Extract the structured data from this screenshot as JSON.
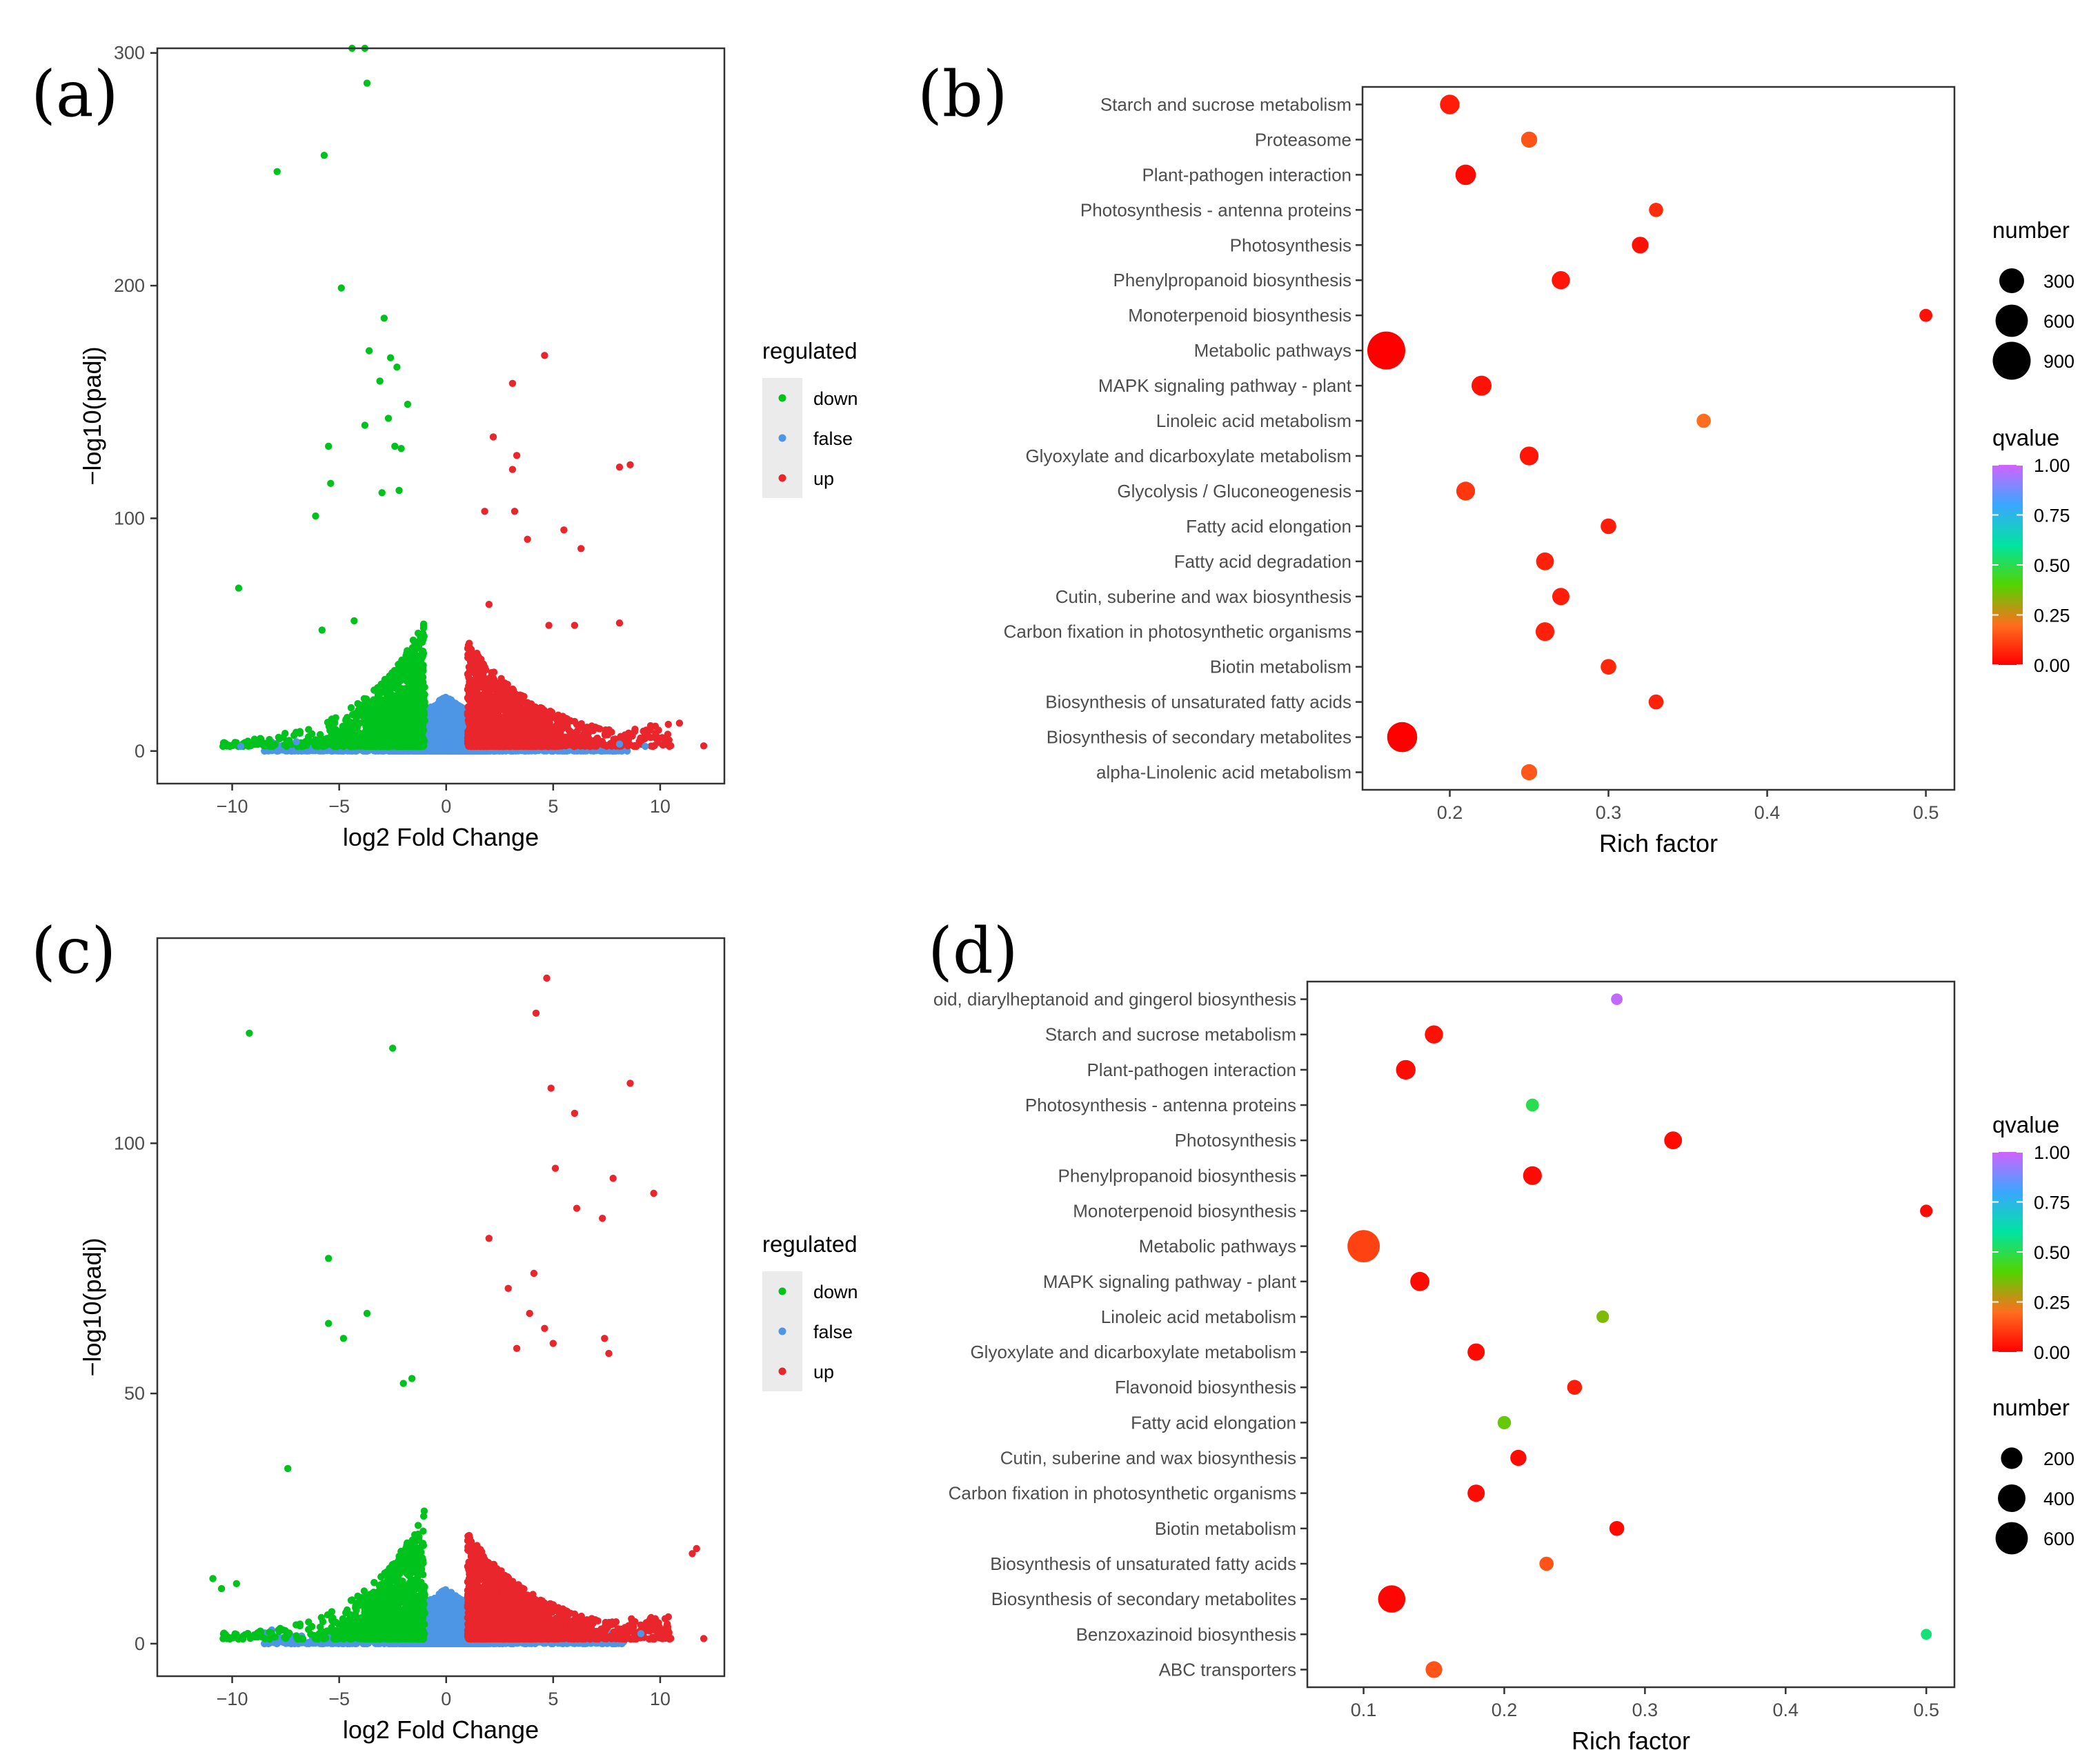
{
  "figure": {
    "panels": [
      {
        "letter": "(a)"
      },
      {
        "letter": "(b)"
      },
      {
        "letter": "(c)"
      },
      {
        "letter": "(d)"
      }
    ]
  },
  "colors": {
    "down": "#00c21d",
    "false": "#4d96e6",
    "up": "#e8262c",
    "legend_key_bg": "#ebebeb",
    "qvalue_gradient": [
      "#ff0000",
      "#ff6e1e",
      "#52d400",
      "#00e4a0",
      "#39a7ff",
      "#d063ff"
    ]
  },
  "chart_data": [
    {
      "id": "a",
      "type": "scatter",
      "title": "",
      "xlabel": "log2 Fold Change",
      "ylabel": "−log10(padj)",
      "xlim": [
        -13.5,
        13
      ],
      "ylim": [
        -14,
        302
      ],
      "xticks": [
        -10,
        -5,
        0,
        5,
        10
      ],
      "xtick_labels": [
        "−10",
        "−5",
        "0",
        "5",
        "10"
      ],
      "yticks": [
        0,
        100,
        200,
        300
      ],
      "ytick_labels": [
        "0",
        "100",
        "200",
        "300"
      ],
      "legend": {
        "title": "regulated",
        "entries": [
          "down",
          "false",
          "up"
        ],
        "position": "right"
      },
      "notable_points": {
        "down": [
          [
            -4.4,
            302
          ],
          [
            -3.8,
            302
          ],
          [
            -3.7,
            287
          ],
          [
            -7.9,
            249
          ],
          [
            -5.7,
            256
          ],
          [
            -4.9,
            199
          ],
          [
            -2.9,
            186
          ],
          [
            -3.6,
            172
          ],
          [
            -2.6,
            169
          ],
          [
            -2.3,
            165
          ],
          [
            -3.1,
            159
          ],
          [
            -1.8,
            149
          ],
          [
            -3.8,
            140
          ],
          [
            -2.7,
            143
          ],
          [
            -5.5,
            131
          ],
          [
            -2.4,
            131
          ],
          [
            -2.1,
            130
          ],
          [
            -5.4,
            115
          ],
          [
            -2.2,
            112
          ],
          [
            -3.0,
            111
          ],
          [
            -6.1,
            101
          ],
          [
            -9.7,
            70
          ],
          [
            -5.8,
            52
          ],
          [
            -4.3,
            56
          ]
        ],
        "up": [
          [
            4.6,
            170
          ],
          [
            3.1,
            158
          ],
          [
            2.2,
            135
          ],
          [
            3.3,
            127
          ],
          [
            3.1,
            121
          ],
          [
            8.1,
            122
          ],
          [
            8.6,
            123
          ],
          [
            1.8,
            103
          ],
          [
            3.2,
            103
          ],
          [
            5.5,
            95
          ],
          [
            3.8,
            91
          ],
          [
            6.3,
            87
          ],
          [
            2.0,
            63
          ],
          [
            4.8,
            54
          ],
          [
            6.0,
            54
          ],
          [
            8.1,
            55
          ],
          [
            10.9,
            12
          ]
        ],
        "false": [
          [
            -9.6,
            2
          ],
          [
            -7.0,
            4
          ],
          [
            8.1,
            3
          ],
          [
            9.3,
            2
          ]
        ]
      },
      "point_counts": {
        "down": 1350,
        "false": 4200,
        "up": 1500
      }
    },
    {
      "id": "b",
      "type": "scatter",
      "title": "",
      "xlabel": "Rich factor",
      "ylabel": "",
      "xlim": [
        0.145,
        0.518
      ],
      "xticks": [
        0.2,
        0.3,
        0.4,
        0.5
      ],
      "xtick_labels": [
        "0.2",
        "0.3",
        "0.4",
        "0.5"
      ],
      "categories": [
        "Starch and sucrose metabolism",
        "Proteasome",
        "Plant-pathogen interaction",
        "Photosynthesis - antenna proteins",
        "Photosynthesis",
        "Phenylpropanoid biosynthesis",
        "Monoterpenoid biosynthesis",
        "Metabolic pathways",
        "MAPK signaling pathway - plant",
        "Linoleic acid metabolism",
        "Glyoxylate and dicarboxylate metabolism",
        "Glycolysis / Gluconeogenesis",
        "Fatty acid elongation",
        "Fatty acid degradation",
        "Cutin, suberine and wax biosynthesis",
        "Carbon fixation in photosynthetic organisms",
        "Biotin metabolism",
        "Biosynthesis of unsaturated fatty acids",
        "Biosynthesis of secondary metabolites",
        "alpha-Linolenic acid metabolism"
      ],
      "rich_factor": [
        0.2,
        0.25,
        0.21,
        0.33,
        0.32,
        0.27,
        0.5,
        0.16,
        0.22,
        0.36,
        0.25,
        0.21,
        0.3,
        0.26,
        0.27,
        0.26,
        0.3,
        0.33,
        0.17,
        0.25
      ],
      "number": [
        150,
        80,
        170,
        50,
        90,
        120,
        35,
        900,
        160,
        50,
        130,
        130,
        70,
        110,
        100,
        130,
        70,
        60,
        500,
        80
      ],
      "qvalue": [
        0.05,
        0.15,
        0.02,
        0.08,
        0.03,
        0.04,
        0.03,
        0.0,
        0.03,
        0.2,
        0.04,
        0.1,
        0.05,
        0.06,
        0.05,
        0.06,
        0.07,
        0.06,
        0.0,
        0.16
      ],
      "size_legend": {
        "title": "number",
        "values": [
          300,
          600,
          900
        ],
        "labels": [
          "300",
          "600",
          "900"
        ]
      },
      "color_legend": {
        "title": "qvalue",
        "ticks": [
          0.0,
          0.25,
          0.5,
          0.75,
          1.0
        ],
        "labels": [
          "0.00",
          "0.25",
          "0.50",
          "0.75",
          "1.00"
        ]
      }
    },
    {
      "id": "c",
      "type": "scatter",
      "title": "",
      "xlabel": "log2 Fold Change",
      "ylabel": "−log10(padj)",
      "xlim": [
        -13.5,
        13
      ],
      "ylim": [
        -6.5,
        141
      ],
      "xticks": [
        -10,
        -5,
        0,
        5,
        10
      ],
      "xtick_labels": [
        "−10",
        "−5",
        "0",
        "5",
        "10"
      ],
      "yticks": [
        0,
        50,
        100
      ],
      "ytick_labels": [
        "0",
        "50",
        "100"
      ],
      "legend": {
        "title": "regulated",
        "entries": [
          "down",
          "false",
          "up"
        ],
        "position": "right"
      },
      "notable_points": {
        "down": [
          [
            -9.2,
            122
          ],
          [
            -2.5,
            119
          ],
          [
            -5.5,
            77
          ],
          [
            -3.7,
            66
          ],
          [
            -5.5,
            64
          ],
          [
            -4.8,
            61
          ],
          [
            -1.6,
            53
          ],
          [
            -2.0,
            52
          ],
          [
            -7.4,
            35
          ],
          [
            -10.9,
            13
          ],
          [
            -10.5,
            11
          ],
          [
            -9.8,
            12
          ]
        ],
        "up": [
          [
            4.7,
            133
          ],
          [
            4.2,
            126
          ],
          [
            8.6,
            112
          ],
          [
            4.9,
            111
          ],
          [
            6.0,
            106
          ],
          [
            5.1,
            95
          ],
          [
            9.7,
            90
          ],
          [
            6.1,
            87
          ],
          [
            7.8,
            93
          ],
          [
            7.3,
            85
          ],
          [
            2.0,
            81
          ],
          [
            4.1,
            74
          ],
          [
            2.9,
            71
          ],
          [
            3.9,
            66
          ],
          [
            3.3,
            59
          ],
          [
            4.6,
            63
          ],
          [
            5.0,
            60
          ],
          [
            7.4,
            61
          ],
          [
            7.6,
            58
          ],
          [
            11.7,
            19
          ],
          [
            11.5,
            18
          ]
        ],
        "false": [
          [
            9.1,
            2
          ],
          [
            -7.9,
            0
          ]
        ]
      },
      "point_counts": {
        "down": 1100,
        "false": 4500,
        "up": 2100
      }
    },
    {
      "id": "d",
      "type": "scatter",
      "title": "",
      "xlabel": "Rich factor",
      "ylabel": "",
      "xlim": [
        0.06,
        0.52
      ],
      "xticks": [
        0.1,
        0.2,
        0.3,
        0.4,
        0.5
      ],
      "xtick_labels": [
        "0.1",
        "0.2",
        "0.3",
        "0.4",
        "0.5"
      ],
      "categories": [
        "oid, diarylheptanoid and gingerol biosynthesis",
        "Starch and sucrose metabolism",
        "Plant-pathogen interaction",
        "Photosynthesis - antenna proteins",
        "Photosynthesis",
        "Phenylpropanoid biosynthesis",
        "Monoterpenoid biosynthesis",
        "Metabolic pathways",
        "MAPK signaling pathway - plant",
        "Linoleic acid metabolism",
        "Glyoxylate and dicarboxylate metabolism",
        "Flavonoid biosynthesis",
        "Fatty acid elongation",
        "Cutin, suberine and wax biosynthesis",
        "Carbon fixation in photosynthetic organisms",
        "Biotin metabolism",
        "Biosynthesis of unsaturated fatty acids",
        "Biosynthesis of secondary metabolites",
        "Benzoxazinoid biosynthesis",
        "ABC transporters"
      ],
      "rich_factor": [
        0.28,
        0.15,
        0.13,
        0.22,
        0.32,
        0.22,
        0.5,
        0.1,
        0.14,
        0.27,
        0.18,
        0.25,
        0.2,
        0.21,
        0.18,
        0.28,
        0.23,
        0.12,
        0.5,
        0.15
      ],
      "number": [
        20,
        120,
        150,
        35,
        110,
        130,
        30,
        600,
        140,
        30,
        100,
        60,
        40,
        80,
        100,
        60,
        50,
        390,
        15,
        90
      ],
      "qvalue": [
        0.98,
        0.03,
        0.02,
        0.5,
        0.02,
        0.02,
        0.02,
        0.12,
        0.02,
        0.35,
        0.02,
        0.05,
        0.38,
        0.02,
        0.02,
        0.02,
        0.15,
        0.01,
        0.55,
        0.15
      ],
      "size_legend": {
        "title": "number",
        "values": [
          200,
          400,
          600
        ],
        "labels": [
          "200",
          "400",
          "600"
        ]
      },
      "color_legend": {
        "title": "qvalue",
        "ticks": [
          0.0,
          0.25,
          0.5,
          0.75,
          1.0
        ],
        "labels": [
          "0.00",
          "0.25",
          "0.50",
          "0.75",
          "1.00"
        ]
      }
    }
  ]
}
